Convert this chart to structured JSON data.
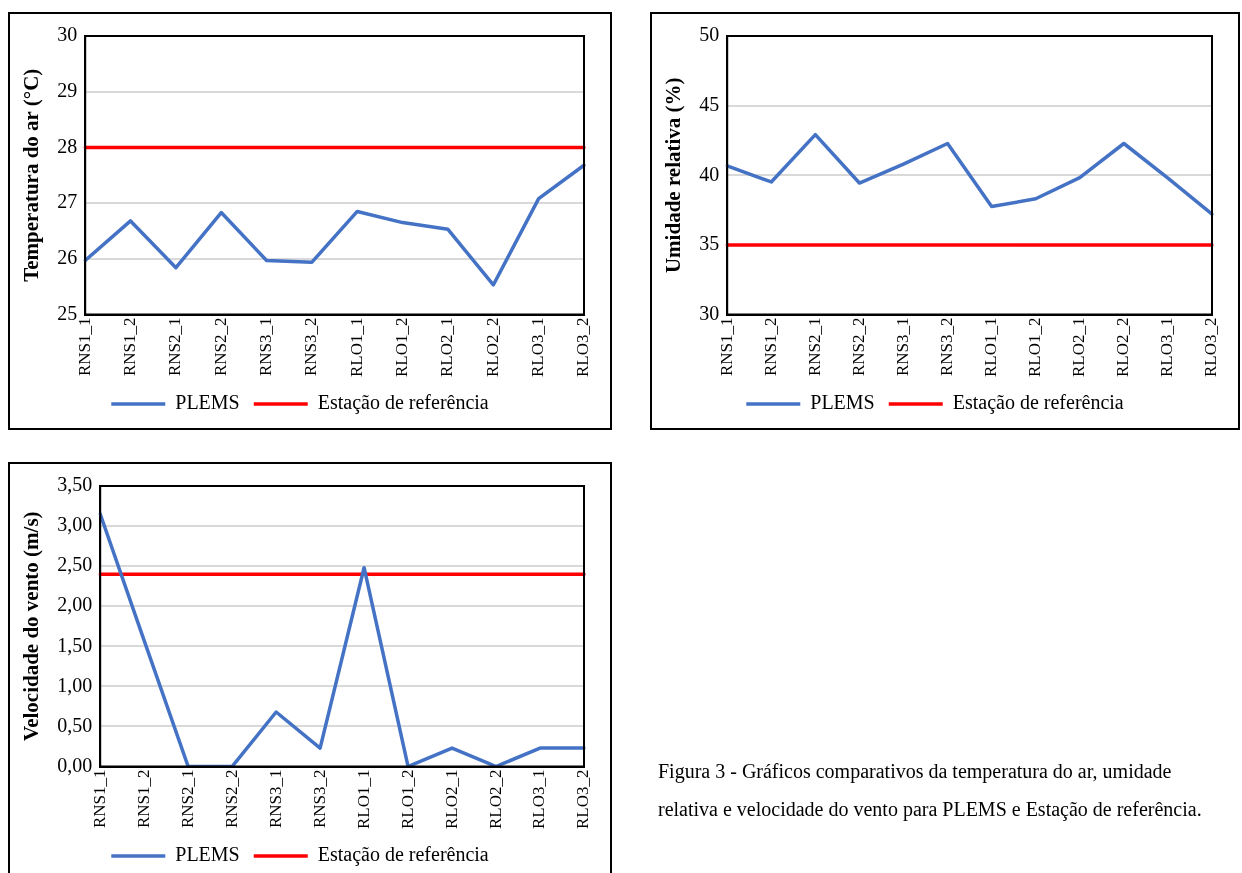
{
  "chart_data": [
    {
      "type": "line",
      "ylabel": "Temperatura do ar (°C)",
      "categories": [
        "RNS1_1",
        "RNS1_2",
        "RNS2_1",
        "RNS2_2",
        "RNS3_1",
        "RNS3_2",
        "RLO1_1",
        "RLO1_2",
        "RLO2_1",
        "RLO2_2",
        "RLO3_1",
        "RLO3_2"
      ],
      "series": [
        {
          "name": "PLEMS",
          "color": "#4472c4",
          "values": [
            25.97,
            26.68,
            25.84,
            26.83,
            25.97,
            25.94,
            26.85,
            26.65,
            26.53,
            25.53,
            27.08,
            27.68
          ]
        },
        {
          "name": "Estação de referência",
          "color": "#ff0000",
          "values": [
            28,
            28,
            28,
            28,
            28,
            28,
            28,
            28,
            28,
            28,
            28,
            28
          ]
        }
      ],
      "ylim": [
        25,
        30
      ],
      "yticks": [
        25,
        26,
        27,
        28,
        29,
        30
      ],
      "grid": "y",
      "legend": "bottom",
      "marker": "none",
      "line_style": "solid"
    },
    {
      "type": "line",
      "ylabel": "Umidade relativa (%)",
      "categories": [
        "RNS1_1",
        "RNS1_2",
        "RNS2_1",
        "RNS2_2",
        "RNS3_1",
        "RNS3_2",
        "RLO1_1",
        "RLO1_2",
        "RLO2_1",
        "RLO2_2",
        "RLO3_1",
        "RLO3_2"
      ],
      "series": [
        {
          "name": "PLEMS",
          "color": "#4472c4",
          "values": [
            40.68,
            39.52,
            42.92,
            39.44,
            40.8,
            42.28,
            37.75,
            38.31,
            39.83,
            42.28,
            39.8,
            37.21
          ]
        },
        {
          "name": "Estação de referência",
          "color": "#ff0000",
          "values": [
            35,
            35,
            35,
            35,
            35,
            35,
            35,
            35,
            35,
            35,
            35,
            35
          ]
        }
      ],
      "ylim": [
        30,
        50
      ],
      "yticks": [
        30,
        35,
        40,
        45,
        50
      ],
      "grid": "y",
      "legend": "bottom",
      "marker": "none",
      "line_style": "solid"
    },
    {
      "type": "line",
      "ylabel": "Velocidade do vento (m/s)",
      "categories": [
        "RNS1_1",
        "RNS1_2",
        "RNS2_1",
        "RNS2_2",
        "RNS3_1",
        "RNS3_2",
        "RLO1_1",
        "RLO1_2",
        "RLO2_1",
        "RLO2_2",
        "RLO3_1",
        "RLO3_2"
      ],
      "series": [
        {
          "name": "PLEMS",
          "color": "#4472c4",
          "values": [
            3.15,
            1.57,
            0,
            0,
            0.68,
            0.23,
            2.48,
            0,
            0.23,
            0,
            0.23,
            0.23
          ]
        },
        {
          "name": "Estação de referência",
          "color": "#ff0000",
          "values": [
            2.4,
            2.4,
            2.4,
            2.4,
            2.4,
            2.4,
            2.4,
            2.4,
            2.4,
            2.4,
            2.4,
            2.4
          ]
        }
      ],
      "ylim": [
        0,
        3.5
      ],
      "yticks": [
        {
          "value": 0,
          "label": "0,00"
        },
        {
          "value": 0.5,
          "label": "0,50"
        },
        {
          "value": 1,
          "label": "1,00"
        },
        {
          "value": 1.5,
          "label": "1,50"
        },
        {
          "value": 2,
          "label": "2,00"
        },
        {
          "value": 2.5,
          "label": "2,50"
        },
        {
          "value": 3,
          "label": "3,00"
        },
        {
          "value": 3.5,
          "label": "3,50"
        }
      ],
      "grid": "y",
      "legend": "bottom",
      "marker": "none",
      "line_style": "solid"
    },
    {
      "type": "other",
      "annotations": [
        "Figura 3 - Gráficos comparativos da temperatura do ar, umidade relativa e velocidade do vento para PLEMS e Estação de referência."
      ]
    }
  ]
}
